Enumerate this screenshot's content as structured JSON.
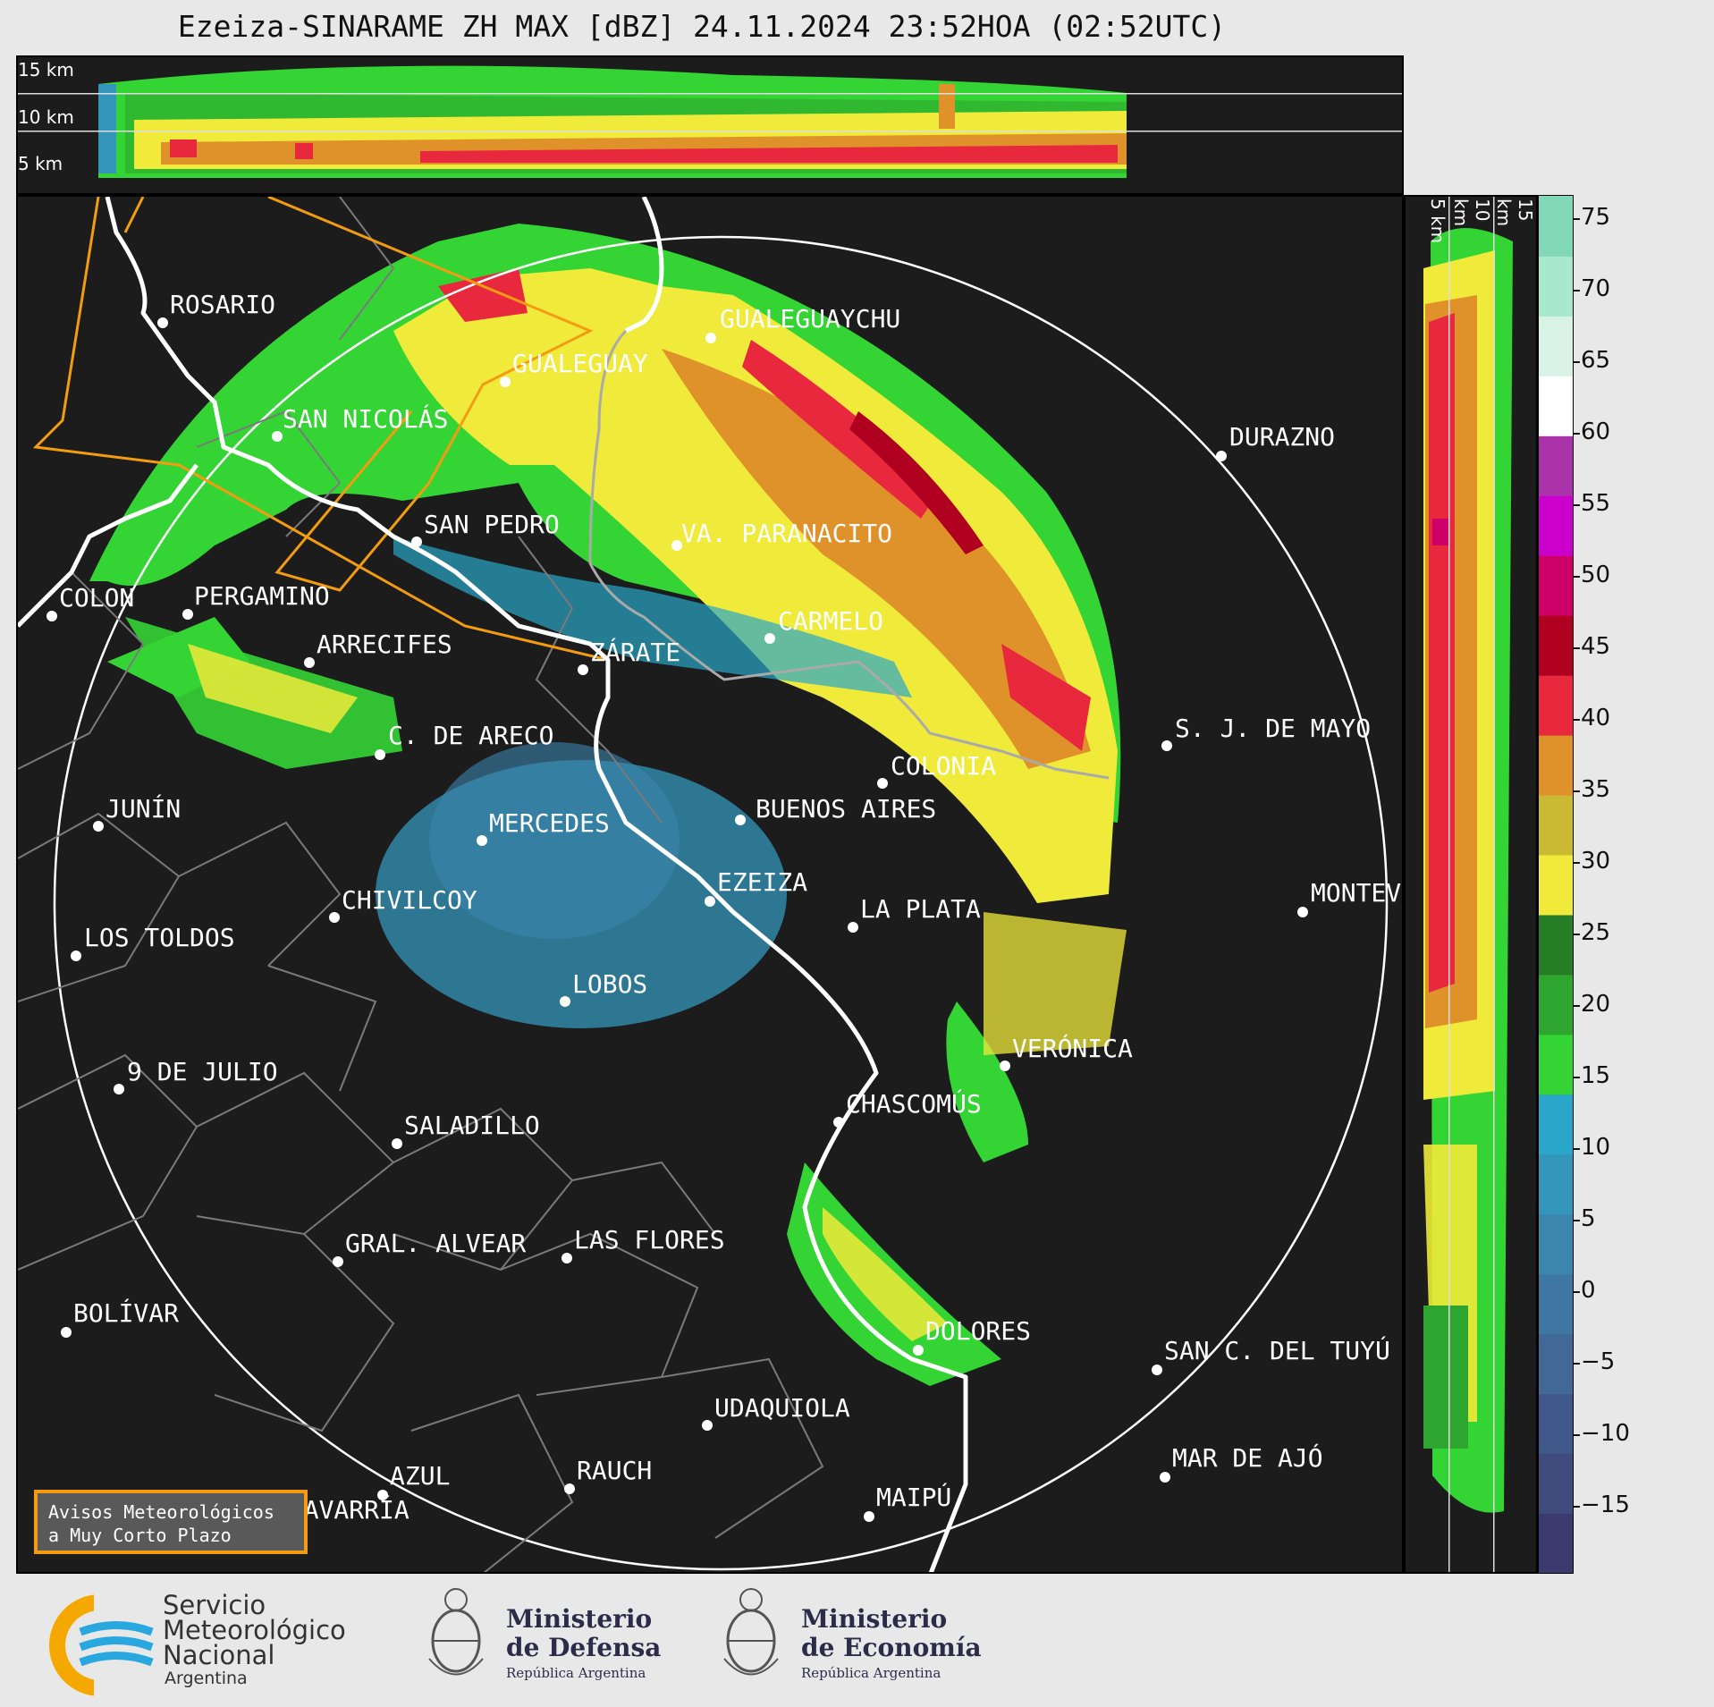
{
  "title": "Ezeiza-SINARAME ZH MAX [dBZ] 24.11.2024 23:52HOA (02:52UTC)",
  "top_panel": {
    "height_labels": [
      "15 km",
      "10 km",
      "5 km"
    ]
  },
  "side_panel": {
    "height_labels": [
      "5 km",
      "10 km",
      "15 km"
    ]
  },
  "colorbar": {
    "ticks": [
      "75",
      "70",
      "65",
      "60",
      "55",
      "50",
      "45",
      "40",
      "35",
      "30",
      "25",
      "20",
      "15",
      "10",
      "5",
      "0",
      "−5",
      "−10",
      "−15"
    ],
    "colors": [
      "#3b3a6e",
      "#3f4b7c",
      "#41598a",
      "#426896",
      "#3f77a2",
      "#3a86ad",
      "#3395ba",
      "#2aa6c8",
      "#35d435",
      "#2ea52e",
      "#257d25",
      "#f0ea3a",
      "#c9b933",
      "#e0922a",
      "#e8283c",
      "#b00020",
      "#cc0066",
      "#cc00cc",
      "#aa33aa",
      "#ffffff",
      "#d9f2e6",
      "#a8e8cc",
      "#80d8b8"
    ]
  },
  "cities": [
    {
      "name": "ROSARIO"
    },
    {
      "name": "GUALEGUAYCHU"
    },
    {
      "name": "GUALEGUAY"
    },
    {
      "name": "SAN NICOLÁS"
    },
    {
      "name": "DURAZNO"
    },
    {
      "name": "SAN PEDRO"
    },
    {
      "name": "VA. PARANACITO"
    },
    {
      "name": "COLON"
    },
    {
      "name": "PERGAMINO"
    },
    {
      "name": "CARMELO"
    },
    {
      "name": "ARRECIFES"
    },
    {
      "name": "ZÁRATE"
    },
    {
      "name": "S. J. DE MAYO"
    },
    {
      "name": "C. DE ARECO"
    },
    {
      "name": "COLONIA"
    },
    {
      "name": "JUNÍN"
    },
    {
      "name": "BUENOS AIRES"
    },
    {
      "name": "MERCEDES"
    },
    {
      "name": "EZEIZA"
    },
    {
      "name": "MONTEV"
    },
    {
      "name": "CHIVILCOY"
    },
    {
      "name": "LA PLATA"
    },
    {
      "name": "LOS TOLDOS"
    },
    {
      "name": "LOBOS"
    },
    {
      "name": "VERÓNICA"
    },
    {
      "name": "9 DE JULIO"
    },
    {
      "name": "CHASCOMÚS"
    },
    {
      "name": "SALADILLO"
    },
    {
      "name": "GRAL. ALVEAR"
    },
    {
      "name": "LAS FLORES"
    },
    {
      "name": "BOLÍVAR"
    },
    {
      "name": "DOLORES"
    },
    {
      "name": "SAN C. DEL TUYÚ"
    },
    {
      "name": "UDAQUIOLA"
    },
    {
      "name": "MAR DE AJÓ"
    },
    {
      "name": "RAUCH"
    },
    {
      "name": "AZUL"
    },
    {
      "name": "OLAVARRÍA"
    },
    {
      "name": "MAIPÚ"
    }
  ],
  "warning_box": {
    "line1": "Avisos Meteorológicos",
    "line2": "a Muy Corto Plazo"
  },
  "footer": {
    "smn": {
      "line1": "Servicio",
      "line2": "Meteorológico",
      "line3": "Nacional",
      "line4": "Argentina"
    },
    "defensa": {
      "line1": "Ministerio",
      "line2": "de Defensa",
      "line3": "República Argentina"
    },
    "economia": {
      "line1": "Ministerio",
      "line2": "de Economía",
      "line3": "República Argentina"
    }
  },
  "colors": {
    "map_bg": "#1c1c1c",
    "roads": "#ffffff",
    "borders": "#7a7a7a",
    "rivers": "#f39c12"
  }
}
